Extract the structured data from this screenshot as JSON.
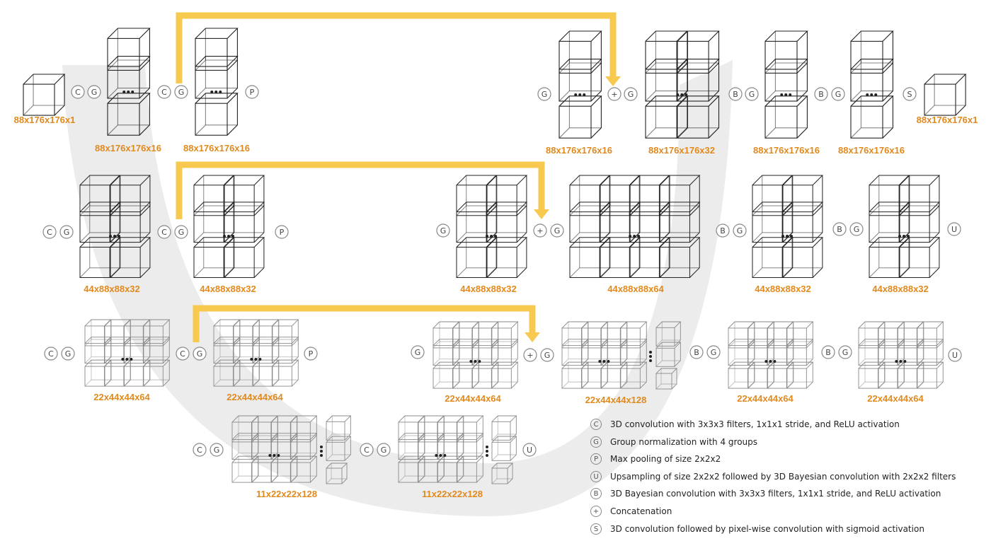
{
  "colors": {
    "skip": "#f7c94f",
    "backdrop": "#ececec",
    "shape": "#e08a1e",
    "cube": "#222222",
    "cube_light": "#8a8a8a",
    "circle": "#888888"
  },
  "level1": {
    "input": "88x176x176x1",
    "enc_a": "88x176x176x16",
    "enc_b": "88x176x176x16",
    "dec_a": "88x176x176x16",
    "dec_b": "88x176x176x32",
    "dec_c": "88x176x176x16",
    "dec_d": "88x176x176x16",
    "output": "88x176x176x1"
  },
  "level2": {
    "enc_a": "44x88x88x32",
    "enc_b": "44x88x88x32",
    "dec_a": "44x88x88x32",
    "dec_b": "44x88x88x64",
    "dec_c": "44x88x88x32",
    "dec_d": "44x88x88x32"
  },
  "level3": {
    "enc_a": "22x44x44x64",
    "enc_b": "22x44x44x64",
    "dec_a": "22x44x44x64",
    "dec_b": "22x44x44x128",
    "dec_c": "22x44x44x64",
    "dec_d": "22x44x44x64"
  },
  "bottom": {
    "a": "11x22x22x128",
    "b": "11x22x22x128"
  },
  "legend": [
    {
      "symbol": "C",
      "text": "3D convolution with 3x3x3 filters, 1x1x1 stride, and ReLU activation"
    },
    {
      "symbol": "G",
      "text": "Group normalization with 4 groups"
    },
    {
      "symbol": "P",
      "text": "Max pooling of size 2x2x2"
    },
    {
      "symbol": "U",
      "text": "Upsampling of size 2x2x2 followed by 3D Bayesian convolution with 2x2x2 filters"
    },
    {
      "symbol": "B",
      "text": "3D Bayesian convolution with 3x3x3 filters, 1x1x1 stride, and ReLU activation"
    },
    {
      "symbol": "+",
      "text": "Concatenation"
    },
    {
      "symbol": "S",
      "text": "3D convolution followed by pixel-wise convolution with sigmoid activation"
    }
  ]
}
